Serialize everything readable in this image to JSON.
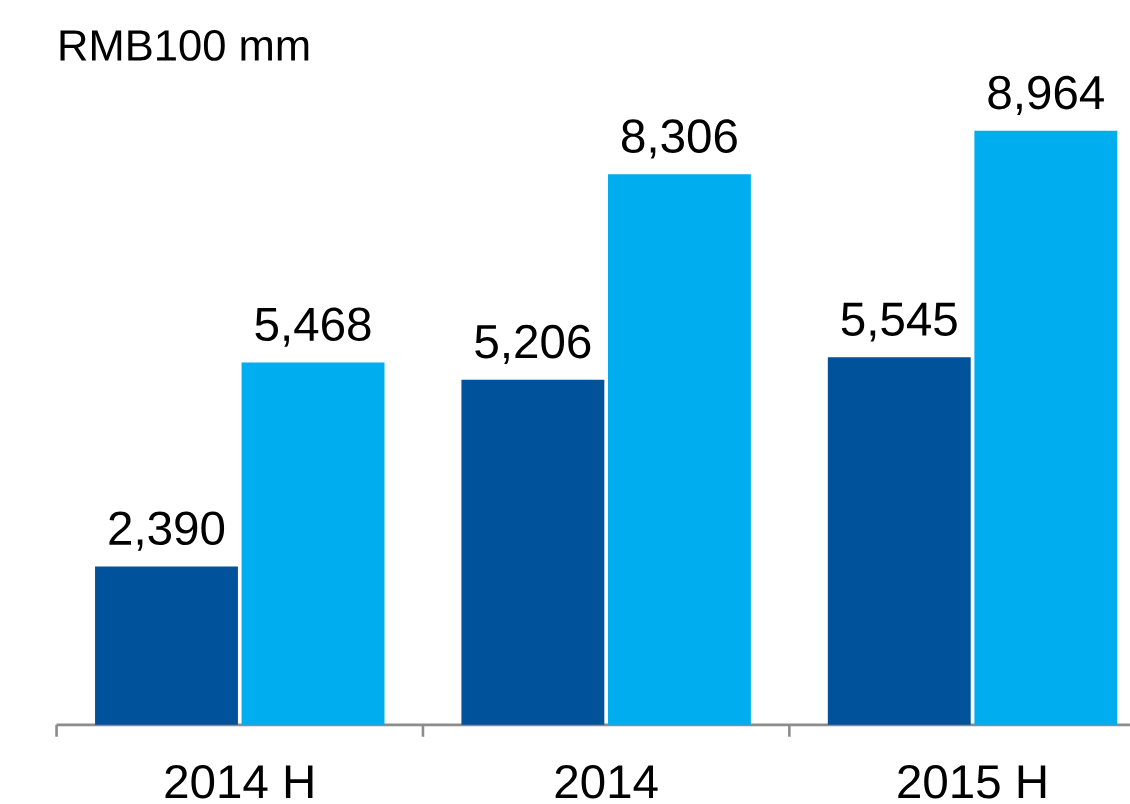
{
  "chart_data": {
    "type": "bar",
    "ylabel": "RMB100 mm",
    "categories": [
      "2014 H",
      "2014",
      "2015 H"
    ],
    "series": [
      {
        "color": "#00529b",
        "values": [
          2390,
          5206,
          5545
        ],
        "value_labels": [
          "2,390",
          "5,206",
          "5,545"
        ]
      },
      {
        "color": "#00adee",
        "values": [
          5468,
          8306,
          8964
        ],
        "value_labels": [
          "5,468",
          "8,306",
          "8,964"
        ]
      }
    ]
  }
}
